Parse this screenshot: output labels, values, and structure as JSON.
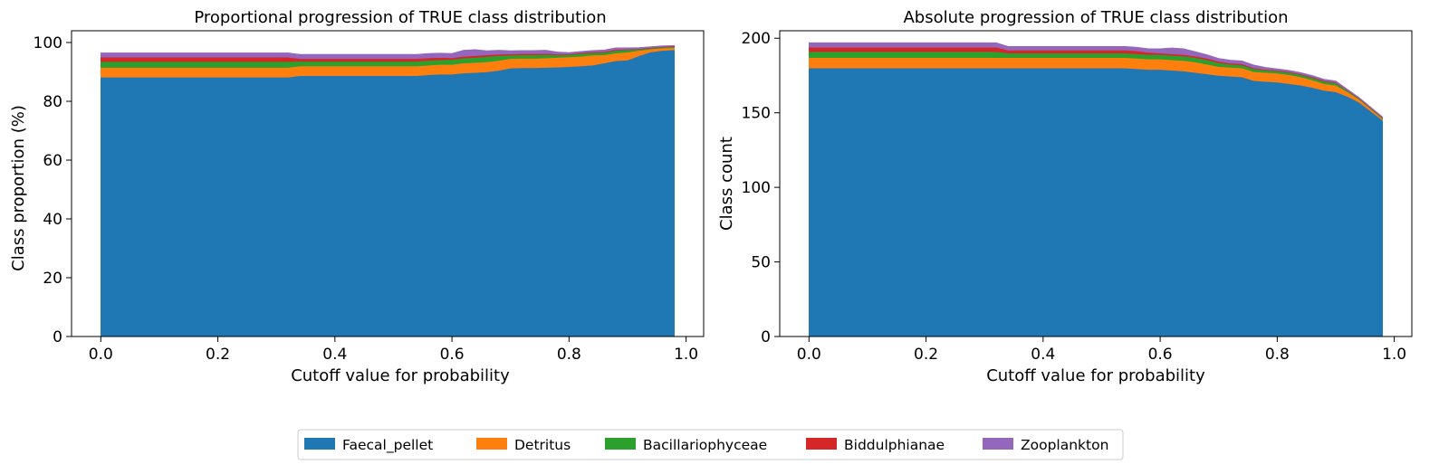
{
  "chart_data": [
    {
      "type": "area",
      "stacked": true,
      "title": "Proportional progression of TRUE class distribution",
      "xlabel": "Cutoff value for probability",
      "ylabel": "Class proportion (%)",
      "xlim": [
        -0.05,
        1.03
      ],
      "ylim": [
        0,
        104
      ],
      "xticks": [
        0.0,
        0.2,
        0.4,
        0.6,
        0.8,
        1.0
      ],
      "xtick_labels": [
        "0.0",
        "0.2",
        "0.4",
        "0.6",
        "0.8",
        "1.0"
      ],
      "yticks": [
        0,
        20,
        40,
        60,
        80,
        100
      ],
      "ytick_labels": [
        "0",
        "20",
        "40",
        "60",
        "80",
        "100"
      ],
      "x": [
        0.0,
        0.32,
        0.34,
        0.54,
        0.56,
        0.58,
        0.6,
        0.62,
        0.64,
        0.66,
        0.68,
        0.7,
        0.72,
        0.74,
        0.76,
        0.78,
        0.8,
        0.82,
        0.84,
        0.86,
        0.88,
        0.9,
        0.92,
        0.94,
        0.96,
        0.98
      ],
      "series": [
        {
          "name": "Faecal_pellet",
          "values": [
            88.2,
            88.2,
            88.7,
            88.7,
            89.0,
            89.2,
            89.2,
            89.6,
            89.8,
            90.0,
            90.5,
            91.3,
            91.4,
            91.4,
            91.5,
            91.6,
            91.8,
            92.0,
            92.3,
            93.0,
            93.8,
            94.0,
            95.5,
            96.8,
            97.3,
            97.5
          ]
        },
        {
          "name": "Detritus",
          "values": [
            3.3,
            3.3,
            3.3,
            3.3,
            3.3,
            3.3,
            3.3,
            3.4,
            3.4,
            3.4,
            3.4,
            3.2,
            3.2,
            3.2,
            3.2,
            3.3,
            3.3,
            3.3,
            3.4,
            2.8,
            2.6,
            2.7,
            1.8,
            1.0,
            0.8,
            0.8
          ]
        },
        {
          "name": "Bacillariophyceae",
          "values": [
            2.0,
            2.0,
            1.6,
            1.6,
            1.6,
            1.6,
            1.7,
            1.7,
            1.7,
            1.8,
            1.6,
            1.2,
            1.2,
            1.2,
            1.2,
            0.8,
            0.8,
            0.9,
            0.8,
            0.8,
            0.9,
            0.8,
            0.4,
            0.3,
            0.3,
            0.3
          ]
        },
        {
          "name": "Biddulphianae",
          "values": [
            1.5,
            1.5,
            0.9,
            0.9,
            0.9,
            0.8,
            0.6,
            0.6,
            0.6,
            0.6,
            0.5,
            0.4,
            0.4,
            0.4,
            0.4,
            0.3,
            0.2,
            0.3,
            0.3,
            0.3,
            0.3,
            0.2,
            0.2,
            0.2,
            0.2,
            0.2
          ]
        },
        {
          "name": "Zooplankton",
          "values": [
            1.5,
            1.5,
            1.5,
            1.5,
            1.5,
            1.5,
            1.5,
            2.1,
            2.1,
            1.4,
            1.4,
            1.1,
            1.1,
            1.1,
            1.1,
            0.8,
            0.5,
            0.5,
            0.5,
            0.6,
            0.6,
            0.5,
            0.4,
            0.3,
            0.3,
            0.2
          ]
        }
      ]
    },
    {
      "type": "area",
      "stacked": true,
      "title": "Absolute progression of TRUE class distribution",
      "xlabel": "Cutoff value for probability",
      "ylabel": "Class count",
      "xlim": [
        -0.05,
        1.03
      ],
      "ylim": [
        0,
        205
      ],
      "xticks": [
        0.0,
        0.2,
        0.4,
        0.6,
        0.8,
        1.0
      ],
      "xtick_labels": [
        "0.0",
        "0.2",
        "0.4",
        "0.6",
        "0.8",
        "1.0"
      ],
      "yticks": [
        0,
        50,
        100,
        150,
        200
      ],
      "ytick_labels": [
        "0",
        "50",
        "100",
        "150",
        "200"
      ],
      "x": [
        0.0,
        0.32,
        0.34,
        0.54,
        0.56,
        0.58,
        0.6,
        0.62,
        0.64,
        0.66,
        0.68,
        0.7,
        0.72,
        0.74,
        0.76,
        0.78,
        0.8,
        0.82,
        0.84,
        0.86,
        0.88,
        0.9,
        0.92,
        0.94,
        0.96,
        0.98
      ],
      "series": [
        {
          "name": "Faecal_pellet",
          "values": [
            180,
            180,
            180,
            180,
            179.5,
            179,
            179,
            178.5,
            178,
            177,
            176,
            175,
            174.5,
            174,
            171.5,
            171,
            170.5,
            169.5,
            168.5,
            167,
            165,
            164,
            161,
            157,
            151,
            145
          ]
        },
        {
          "name": "Detritus",
          "values": [
            7,
            7,
            7,
            7,
            7,
            7,
            7,
            7,
            7,
            7,
            6.5,
            6,
            6,
            6,
            6,
            6,
            6,
            6,
            5.5,
            5,
            4.5,
            4.5,
            3,
            2,
            1.5,
            1
          ]
        },
        {
          "name": "Bacillariophyceae",
          "values": [
            4,
            4,
            3,
            3,
            3,
            3,
            3,
            3,
            3,
            3,
            3,
            2.5,
            2,
            2,
            2,
            1.5,
            1.5,
            1.5,
            1.5,
            1.5,
            1.5,
            1.5,
            0.8,
            0.5,
            0.5,
            0.5
          ]
        },
        {
          "name": "Biddulphianae",
          "values": [
            3,
            3,
            2,
            2,
            2,
            1.5,
            1,
            1,
            1,
            1,
            1,
            1,
            0.8,
            0.8,
            0.6,
            0.5,
            0.5,
            0.5,
            0.5,
            0.5,
            0.5,
            0.4,
            0.3,
            0.3,
            0.3,
            0.3
          ]
        },
        {
          "name": "Zooplankton",
          "values": [
            3,
            3,
            2.5,
            2.5,
            2.5,
            2.5,
            3,
            4,
            4,
            3,
            2.5,
            2,
            2,
            2,
            2,
            1.5,
            1,
            1,
            1,
            1,
            1,
            1,
            0.7,
            0.5,
            0.5,
            0.5
          ]
        }
      ]
    }
  ],
  "legend": {
    "placement": "bottom-center",
    "entries": [
      {
        "label": "Faecal_pellet",
        "color": "#1f77b4"
      },
      {
        "label": "Detritus",
        "color": "#ff7f0e"
      },
      {
        "label": "Bacillariophyceae",
        "color": "#2ca02c"
      },
      {
        "label": "Biddulphianae",
        "color": "#d62728"
      },
      {
        "label": "Zooplankton",
        "color": "#9467bd"
      }
    ]
  }
}
